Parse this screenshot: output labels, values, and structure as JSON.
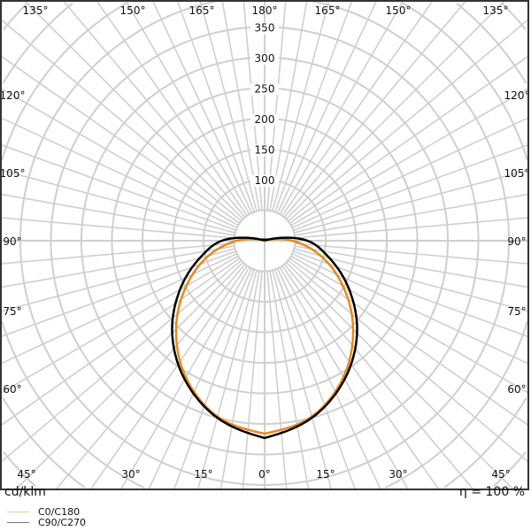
{
  "chart_data": {
    "type": "polar",
    "unit_label": "cd/klm",
    "efficiency_label": "η = 100 %",
    "radial_ticks": [
      50,
      100,
      150,
      200,
      250,
      300,
      350
    ],
    "radial_tick_labels": [
      "100",
      "150",
      "200",
      "250",
      "300",
      "350"
    ],
    "angle_labels": {
      "top": [
        "135°",
        "150°",
        "165°",
        "180°",
        "165°",
        "150°",
        "135°"
      ],
      "left": [
        "120°",
        "105°",
        "90°",
        "75°",
        "60°"
      ],
      "right": [
        "120°",
        "105°",
        "90°",
        "75°",
        "60°"
      ],
      "bottom": [
        "45°",
        "30°",
        "15°",
        "0°",
        "15°",
        "30°",
        "45°"
      ]
    },
    "grid": true,
    "legend_placement": "bottom-left",
    "angles_deg": [
      0,
      15,
      30,
      45,
      60,
      75,
      90,
      105,
      120,
      135,
      150,
      165,
      180
    ],
    "series": [
      {
        "name": "C0/C180",
        "color": "#e8891c",
        "values": [
          316,
          298,
          258,
          205,
          148,
          95,
          45,
          6,
          3,
          2,
          1,
          1,
          1
        ]
      },
      {
        "name": "C90/C270",
        "color": "#000000",
        "values": [
          323,
          300,
          262,
          214,
          160,
          110,
          70,
          10,
          4,
          2,
          1,
          1,
          1
        ]
      }
    ]
  }
}
